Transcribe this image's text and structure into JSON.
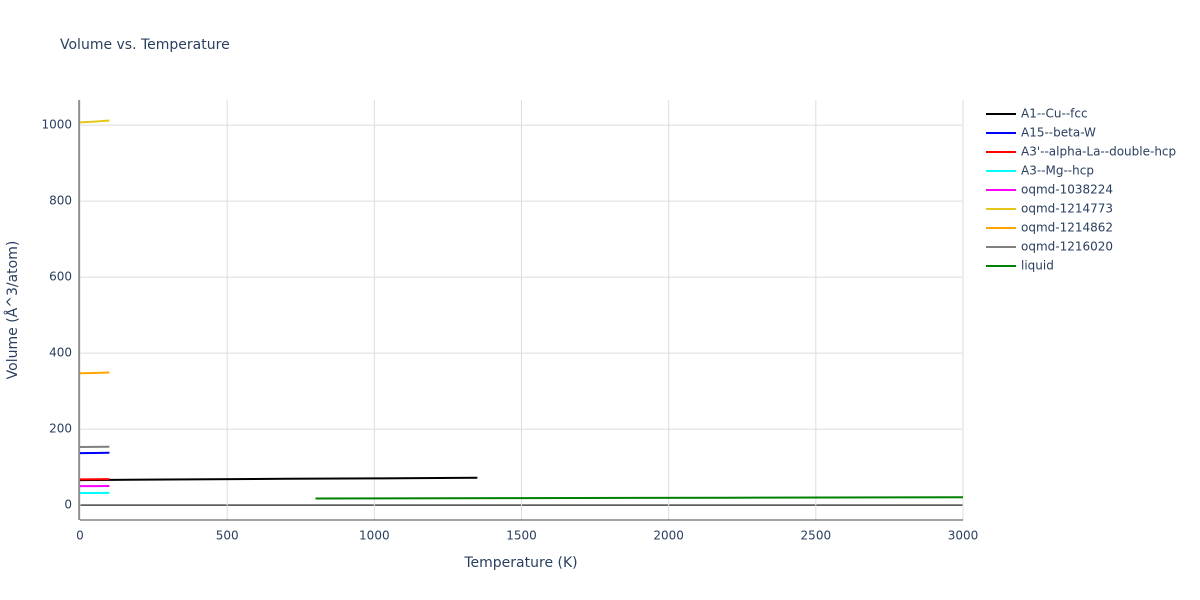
{
  "chart_data": {
    "type": "line",
    "title": "Volume vs. Temperature",
    "x_label": "Temperature (K)",
    "y_label": "Volume (Å^3/atom)",
    "xlim": [
      0,
      3000
    ],
    "ylim": [
      -39,
      1066
    ],
    "xticks": [
      0,
      500,
      1000,
      1500,
      2000,
      2500,
      3000
    ],
    "yticks": [
      0,
      200,
      400,
      600,
      800,
      1000
    ],
    "grid": true,
    "legend": "right",
    "series": [
      {
        "name": "A1--Cu--fcc",
        "color": "#000000",
        "x": [
          0,
          300,
          700,
          1000,
          1350
        ],
        "values": [
          66,
          67.5,
          69.5,
          70.5,
          72
        ]
      },
      {
        "name": "A15--beta-W",
        "color": "#0000ff",
        "x": [
          0,
          50,
          100
        ],
        "values": [
          137,
          137.3,
          137.8
        ]
      },
      {
        "name": "A3'--alpha-La--double-hcp",
        "color": "#ff0000",
        "x": [
          0,
          50,
          100
        ],
        "values": [
          68,
          68.2,
          68.6
        ]
      },
      {
        "name": "A3--Mg--hcp",
        "color": "#00ffff",
        "x": [
          0,
          50,
          100
        ],
        "values": [
          32,
          32.2,
          32.5
        ]
      },
      {
        "name": "oqmd-1038224",
        "color": "#ff00ff",
        "x": [
          0,
          50,
          100
        ],
        "values": [
          50,
          50.2,
          50.5
        ]
      },
      {
        "name": "oqmd-1214773",
        "color": "#e6c619",
        "x": [
          0,
          50,
          100
        ],
        "values": [
          1007,
          1009,
          1012
        ]
      },
      {
        "name": "oqmd-1214862",
        "color": "#ffa500",
        "x": [
          0,
          50,
          100
        ],
        "values": [
          347,
          347.8,
          349
        ]
      },
      {
        "name": "oqmd-1216020",
        "color": "#808080",
        "x": [
          0,
          50,
          100
        ],
        "values": [
          153,
          153.3,
          153.8
        ]
      },
      {
        "name": "liquid",
        "color": "#008000",
        "x": [
          800,
          1500,
          2200,
          3000
        ],
        "values": [
          17.5,
          18.5,
          19.5,
          21
        ]
      }
    ]
  }
}
